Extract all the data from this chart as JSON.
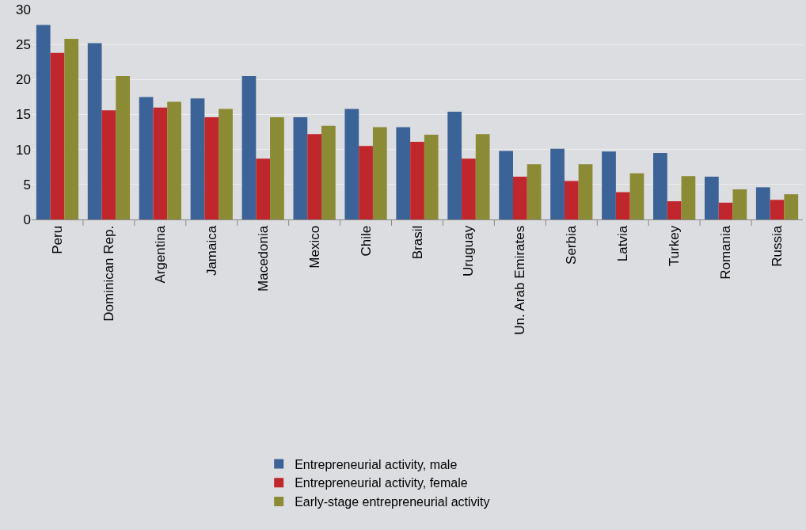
{
  "chart_data": {
    "type": "bar",
    "categories": [
      "Peru",
      "Dominican Rep.",
      "Argentina",
      "Jamaica",
      "Macedonia",
      "Mexico",
      "Chile",
      "Brasil",
      "Uruguay",
      "Un. Arab Emirates",
      "Serbia",
      "Latvia",
      "Turkey",
      "Romania",
      "Russia"
    ],
    "series": [
      {
        "name": "Entrepreneurial activity, male",
        "color": "#3b6398",
        "values": [
          27.8,
          25.2,
          17.5,
          17.3,
          20.5,
          14.6,
          15.8,
          13.2,
          15.4,
          9.8,
          10.1,
          9.7,
          9.5,
          6.1,
          4.6
        ]
      },
      {
        "name": "Entrepreneurial activity, female",
        "color": "#c0272d",
        "values": [
          23.8,
          15.6,
          16.0,
          14.6,
          8.7,
          12.2,
          10.5,
          11.1,
          8.7,
          6.1,
          5.5,
          3.9,
          2.6,
          2.4,
          2.8
        ]
      },
      {
        "name": "Early-stage entrepreneurial activity",
        "color": "#8b8a35",
        "values": [
          25.8,
          20.5,
          16.8,
          15.8,
          14.6,
          13.4,
          13.2,
          12.1,
          12.2,
          7.9,
          7.9,
          6.6,
          6.2,
          4.3,
          3.6
        ]
      }
    ],
    "ylim": [
      0,
      30
    ],
    "yticks": [
      0,
      5,
      10,
      15,
      20,
      25,
      30
    ],
    "grid": "y",
    "legend": "bottom"
  }
}
